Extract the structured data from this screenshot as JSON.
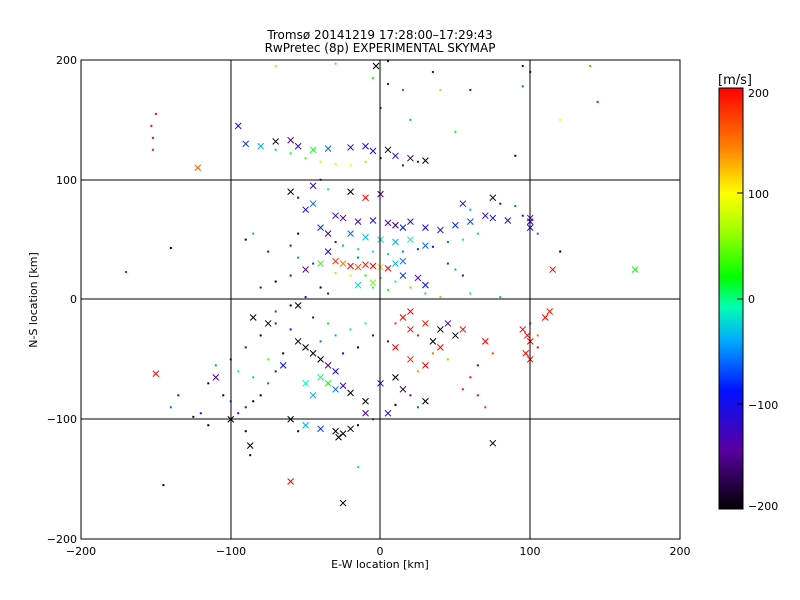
{
  "chart_data": {
    "type": "scatter",
    "title": "Tromsø 20141219 17:28:00–17:29:43",
    "subtitle": "RwPretec (8p) EXPERIMENTAL SKYMAP",
    "xlabel": "E-W location [km]",
    "ylabel": "N-S location [km]",
    "xlim": [
      -200,
      200
    ],
    "ylim": [
      -200,
      200
    ],
    "xticks": [
      "−200",
      "−100",
      "0",
      "100",
      "200"
    ],
    "yticks": [
      "−200",
      "−100",
      "0",
      "100",
      "200"
    ],
    "grid": true,
    "colorbar": {
      "label": "[m/s]",
      "range": [
        -200,
        200
      ],
      "ticks": [
        "200",
        "100",
        "0",
        "−100",
        "−200"
      ]
    },
    "markers": [
      "dot",
      "x"
    ],
    "points": [
      [
        -150,
        155,
        0,
        200
      ],
      [
        -153,
        145,
        0,
        200
      ],
      [
        -152,
        135,
        0,
        210
      ],
      [
        -152,
        125,
        0,
        190
      ],
      [
        -122,
        110,
        1,
        160
      ],
      [
        -170,
        23,
        0,
        200
      ],
      [
        -140,
        43,
        0,
        -200
      ],
      [
        -150,
        -62,
        1,
        200
      ],
      [
        -125,
        -98,
        0,
        -180
      ],
      [
        -145,
        -155,
        0,
        -200
      ],
      [
        -60,
        -152,
        1,
        200
      ],
      [
        -87,
        -122,
        1,
        -200
      ],
      [
        -87,
        -130,
        0,
        -200
      ],
      [
        -25,
        -170,
        1,
        -200
      ],
      [
        -15,
        -140,
        0,
        -20
      ],
      [
        -95,
        145,
        1,
        -100
      ],
      [
        -90,
        130,
        1,
        -80
      ],
      [
        -80,
        128,
        1,
        -40
      ],
      [
        -70,
        132,
        1,
        -200
      ],
      [
        -60,
        133,
        1,
        -150
      ],
      [
        -55,
        128,
        1,
        -110
      ],
      [
        -45,
        125,
        1,
        20
      ],
      [
        -35,
        126,
        1,
        -60
      ],
      [
        -20,
        127,
        1,
        -100
      ],
      [
        -10,
        128,
        1,
        -90
      ],
      [
        -5,
        124,
        1,
        -120
      ],
      [
        5,
        125,
        1,
        -200
      ],
      [
        10,
        120,
        1,
        -110
      ],
      [
        20,
        118,
        1,
        -170
      ],
      [
        30,
        116,
        1,
        -200
      ],
      [
        -70,
        125,
        0,
        -30
      ],
      [
        -60,
        122,
        0,
        10
      ],
      [
        -50,
        118,
        0,
        40
      ],
      [
        -40,
        115,
        0,
        80
      ],
      [
        -30,
        113,
        0,
        110
      ],
      [
        -20,
        112,
        0,
        90
      ],
      [
        -10,
        115,
        0,
        60
      ],
      [
        0,
        118,
        0,
        -200
      ],
      [
        15,
        112,
        0,
        -140
      ],
      [
        25,
        115,
        0,
        -90
      ],
      [
        -5,
        185,
        0,
        30
      ],
      [
        5,
        180,
        0,
        -90
      ],
      [
        15,
        175,
        0,
        -60
      ],
      [
        35,
        190,
        0,
        -150
      ],
      [
        40,
        175,
        0,
        120
      ],
      [
        -3,
        195,
        1,
        -200
      ],
      [
        0,
        160,
        0,
        -110
      ],
      [
        20,
        150,
        0,
        -40
      ],
      [
        50,
        140,
        0,
        20
      ],
      [
        90,
        120,
        0,
        -180
      ],
      [
        95,
        178,
        0,
        -60
      ],
      [
        95,
        195,
        0,
        -170
      ],
      [
        120,
        150,
        0,
        95
      ],
      [
        140,
        195,
        0,
        150
      ],
      [
        145,
        165,
        0,
        200
      ],
      [
        -70,
        195,
        0,
        60
      ],
      [
        -30,
        197,
        0,
        40
      ],
      [
        5,
        199,
        0,
        -100
      ],
      [
        60,
        175,
        0,
        -120
      ],
      [
        100,
        190,
        0,
        -90
      ],
      [
        -20,
        90,
        1,
        -200
      ],
      [
        -10,
        85,
        1,
        200
      ],
      [
        0,
        88,
        1,
        -150
      ],
      [
        -45,
        80,
        1,
        -60
      ],
      [
        -50,
        75,
        1,
        -100
      ],
      [
        -30,
        70,
        1,
        -120
      ],
      [
        -25,
        68,
        1,
        -150
      ],
      [
        -15,
        65,
        1,
        -130
      ],
      [
        -5,
        66,
        1,
        -110
      ],
      [
        5,
        64,
        1,
        -140
      ],
      [
        10,
        62,
        1,
        -170
      ],
      [
        15,
        60,
        1,
        -90
      ],
      [
        20,
        65,
        1,
        -130
      ],
      [
        30,
        60,
        1,
        -100
      ],
      [
        40,
        58,
        1,
        -110
      ],
      [
        50,
        62,
        1,
        -80
      ],
      [
        60,
        65,
        1,
        -70
      ],
      [
        70,
        70,
        1,
        -120
      ],
      [
        75,
        68,
        1,
        -100
      ],
      [
        85,
        66,
        1,
        -110
      ],
      [
        100,
        68,
        1,
        -130
      ],
      [
        -40,
        60,
        1,
        -80
      ],
      [
        -35,
        55,
        1,
        -150
      ],
      [
        -20,
        55,
        1,
        -60
      ],
      [
        -10,
        52,
        1,
        -30
      ],
      [
        0,
        50,
        1,
        -20
      ],
      [
        10,
        48,
        1,
        -40
      ],
      [
        20,
        50,
        1,
        -10
      ],
      [
        30,
        45,
        1,
        -60
      ],
      [
        -30,
        48,
        0,
        -120
      ],
      [
        -25,
        45,
        0,
        -40
      ],
      [
        -15,
        42,
        0,
        -20
      ],
      [
        -5,
        40,
        0,
        0
      ],
      [
        5,
        38,
        0,
        -30
      ],
      [
        15,
        40,
        0,
        -50
      ],
      [
        25,
        42,
        0,
        -80
      ],
      [
        35,
        44,
        0,
        -100
      ],
      [
        45,
        48,
        0,
        -60
      ],
      [
        55,
        50,
        0,
        -20
      ],
      [
        65,
        55,
        0,
        -30
      ],
      [
        -55,
        55,
        0,
        -200
      ],
      [
        -60,
        45,
        0,
        -150
      ],
      [
        -75,
        40,
        0,
        -100
      ],
      [
        -55,
        35,
        0,
        -50
      ],
      [
        -45,
        30,
        0,
        -80
      ],
      [
        -50,
        25,
        1,
        -160
      ],
      [
        -40,
        30,
        1,
        30
      ],
      [
        -30,
        32,
        1,
        180
      ],
      [
        -25,
        30,
        1,
        150
      ],
      [
        -20,
        28,
        1,
        200
      ],
      [
        -15,
        27,
        1,
        170
      ],
      [
        -10,
        29,
        1,
        190
      ],
      [
        -5,
        28,
        1,
        200
      ],
      [
        0,
        27,
        1,
        120
      ],
      [
        5,
        26,
        1,
        210
      ],
      [
        10,
        30,
        1,
        -40
      ],
      [
        15,
        32,
        1,
        -60
      ],
      [
        -30,
        22,
        0,
        60
      ],
      [
        -20,
        20,
        0,
        80
      ],
      [
        -10,
        20,
        0,
        20
      ],
      [
        0,
        18,
        0,
        10
      ],
      [
        10,
        15,
        0,
        -10
      ],
      [
        20,
        10,
        0,
        40
      ],
      [
        -5,
        10,
        0,
        0
      ],
      [
        5,
        8,
        0,
        30
      ],
      [
        -15,
        12,
        1,
        -20
      ],
      [
        -5,
        14,
        1,
        50
      ],
      [
        15,
        20,
        1,
        -80
      ],
      [
        25,
        18,
        1,
        -120
      ],
      [
        30,
        12,
        1,
        -90
      ],
      [
        -40,
        10,
        0,
        -200
      ],
      [
        -35,
        5,
        0,
        -150
      ],
      [
        -50,
        2,
        0,
        -100
      ],
      [
        30,
        5,
        0,
        20
      ],
      [
        40,
        2,
        0,
        40
      ],
      [
        60,
        5,
        0,
        -20
      ],
      [
        80,
        2,
        0,
        -40
      ],
      [
        -60,
        20,
        0,
        -130
      ],
      [
        -70,
        15,
        0,
        -200
      ],
      [
        -80,
        10,
        0,
        -90
      ],
      [
        -15,
        35,
        0,
        -60
      ],
      [
        -35,
        40,
        1,
        -100
      ],
      [
        45,
        30,
        0,
        -80
      ],
      [
        50,
        25,
        0,
        -40
      ],
      [
        55,
        20,
        0,
        -120
      ],
      [
        115,
        25,
        1,
        200
      ],
      [
        170,
        25,
        1,
        20
      ],
      [
        120,
        40,
        0,
        -200
      ],
      [
        -85,
        55,
        0,
        -40
      ],
      [
        -90,
        50,
        0,
        -200
      ],
      [
        -55,
        85,
        0,
        -100
      ],
      [
        -60,
        90,
        1,
        -200
      ],
      [
        -45,
        95,
        1,
        -120
      ],
      [
        -40,
        100,
        0,
        -80
      ],
      [
        -35,
        92,
        0,
        -20
      ],
      [
        55,
        80,
        1,
        -120
      ],
      [
        60,
        75,
        0,
        -40
      ],
      [
        75,
        85,
        1,
        -180
      ],
      [
        80,
        80,
        0,
        -100
      ],
      [
        90,
        78,
        0,
        -60
      ],
      [
        100,
        65,
        1,
        -120
      ],
      [
        100,
        60,
        1,
        -110
      ],
      [
        95,
        70,
        0,
        -90
      ],
      [
        105,
        55,
        0,
        -60
      ],
      [
        -55,
        -5,
        1,
        -200
      ],
      [
        -85,
        -15,
        1,
        -200
      ],
      [
        -80,
        -30,
        0,
        -200
      ],
      [
        -70,
        -20,
        0,
        -150
      ],
      [
        -60,
        -25,
        0,
        -100
      ],
      [
        -55,
        -35,
        1,
        -180
      ],
      [
        -50,
        -40,
        1,
        -200
      ],
      [
        -45,
        -45,
        1,
        -200
      ],
      [
        -40,
        -50,
        1,
        -200
      ],
      [
        -35,
        -55,
        1,
        -150
      ],
      [
        -30,
        -60,
        1,
        -100
      ],
      [
        -40,
        -65,
        1,
        0
      ],
      [
        -35,
        -70,
        1,
        20
      ],
      [
        -30,
        -75,
        1,
        -60
      ],
      [
        -45,
        -80,
        1,
        -40
      ],
      [
        -50,
        -70,
        1,
        -10
      ],
      [
        -25,
        -72,
        1,
        -120
      ],
      [
        -20,
        -78,
        1,
        -200
      ],
      [
        -10,
        -85,
        1,
        -200
      ],
      [
        0,
        -70,
        1,
        -100
      ],
      [
        10,
        -65,
        1,
        -200
      ],
      [
        15,
        -75,
        1,
        -180
      ],
      [
        -65,
        -55,
        1,
        -90
      ],
      [
        -70,
        -60,
        0,
        -120
      ],
      [
        -75,
        -70,
        0,
        -60
      ],
      [
        -80,
        -80,
        0,
        -200
      ],
      [
        -85,
        -85,
        0,
        -200
      ],
      [
        -90,
        -90,
        0,
        -100
      ],
      [
        -95,
        -95,
        0,
        -150
      ],
      [
        -100,
        -85,
        0,
        -60
      ],
      [
        -105,
        -80,
        0,
        -200
      ],
      [
        -110,
        -65,
        1,
        -150
      ],
      [
        -115,
        -70,
        0,
        -200
      ],
      [
        -100,
        -100,
        1,
        -200
      ],
      [
        -90,
        -110,
        0,
        -200
      ],
      [
        -60,
        -100,
        1,
        -200
      ],
      [
        -55,
        -110,
        0,
        -200
      ],
      [
        -50,
        -105,
        1,
        -40
      ],
      [
        -40,
        -108,
        1,
        -80
      ],
      [
        -30,
        -110,
        1,
        -200
      ],
      [
        -25,
        -112,
        1,
        -200
      ],
      [
        -20,
        -108,
        1,
        -200
      ],
      [
        -28,
        -115,
        1,
        -200
      ],
      [
        -15,
        -105,
        0,
        -200
      ],
      [
        -5,
        -100,
        0,
        -60
      ],
      [
        -10,
        -95,
        1,
        -150
      ],
      [
        5,
        -95,
        1,
        -120
      ],
      [
        10,
        -88,
        0,
        -200
      ],
      [
        20,
        -80,
        0,
        -140
      ],
      [
        25,
        -90,
        0,
        -60
      ],
      [
        30,
        -85,
        1,
        -200
      ],
      [
        20,
        -10,
        1,
        200
      ],
      [
        15,
        -15,
        1,
        200
      ],
      [
        10,
        -20,
        0,
        180
      ],
      [
        20,
        -25,
        1,
        200
      ],
      [
        30,
        -20,
        1,
        190
      ],
      [
        25,
        -30,
        0,
        200
      ],
      [
        35,
        -35,
        1,
        -200
      ],
      [
        40,
        -25,
        1,
        -200
      ],
      [
        45,
        -20,
        1,
        -150
      ],
      [
        55,
        -25,
        1,
        210
      ],
      [
        50,
        -30,
        1,
        -200
      ],
      [
        40,
        -40,
        1,
        200
      ],
      [
        35,
        -45,
        0,
        150
      ],
      [
        45,
        -50,
        0,
        130
      ],
      [
        30,
        -55,
        1,
        200
      ],
      [
        25,
        -60,
        0,
        140
      ],
      [
        20,
        -50,
        1,
        180
      ],
      [
        10,
        -40,
        1,
        200
      ],
      [
        70,
        -35,
        1,
        200
      ],
      [
        75,
        -45,
        0,
        170
      ],
      [
        65,
        -55,
        0,
        -150
      ],
      [
        60,
        -65,
        0,
        200
      ],
      [
        55,
        -75,
        0,
        190
      ],
      [
        65,
        -80,
        0,
        200
      ],
      [
        70,
        -90,
        0,
        180
      ],
      [
        75,
        -120,
        1,
        -200
      ],
      [
        -40,
        -35,
        0,
        -60
      ],
      [
        -30,
        -30,
        0,
        -40
      ],
      [
        -20,
        -25,
        0,
        -20
      ],
      [
        -10,
        -20,
        0,
        0
      ],
      [
        -5,
        -30,
        0,
        -90
      ],
      [
        5,
        -35,
        0,
        -120
      ],
      [
        -15,
        -40,
        0,
        -200
      ],
      [
        -25,
        -45,
        0,
        -100
      ],
      [
        -35,
        -20,
        0,
        20
      ],
      [
        -45,
        -15,
        0,
        -160
      ],
      [
        -60,
        -5,
        0,
        -200
      ],
      [
        -70,
        -10,
        0,
        -70
      ],
      [
        -90,
        -40,
        0,
        -100
      ],
      [
        -100,
        -50,
        0,
        -80
      ],
      [
        -110,
        -55,
        0,
        -50
      ],
      [
        -95,
        -60,
        0,
        0
      ],
      [
        -85,
        -65,
        0,
        -30
      ],
      [
        -75,
        -50,
        0,
        40
      ],
      [
        -65,
        -45,
        0,
        -200
      ],
      [
        95,
        -25,
        1,
        200
      ],
      [
        98,
        -30,
        1,
        200
      ],
      [
        100,
        -35,
        1,
        200
      ],
      [
        97,
        -45,
        1,
        200
      ],
      [
        100,
        -50,
        1,
        190
      ],
      [
        105,
        -40,
        0,
        200
      ],
      [
        110,
        -15,
        1,
        200
      ],
      [
        113,
        -10,
        1,
        190
      ],
      [
        100,
        -20,
        0,
        180
      ],
      [
        105,
        -30,
        0,
        150
      ],
      [
        -140,
        -90,
        0,
        -60
      ],
      [
        -135,
        -80,
        0,
        -150
      ],
      [
        -115,
        -105,
        0,
        -200
      ],
      [
        -120,
        -95,
        0,
        -100
      ],
      [
        -75,
        -20,
        1,
        -200
      ]
    ]
  }
}
